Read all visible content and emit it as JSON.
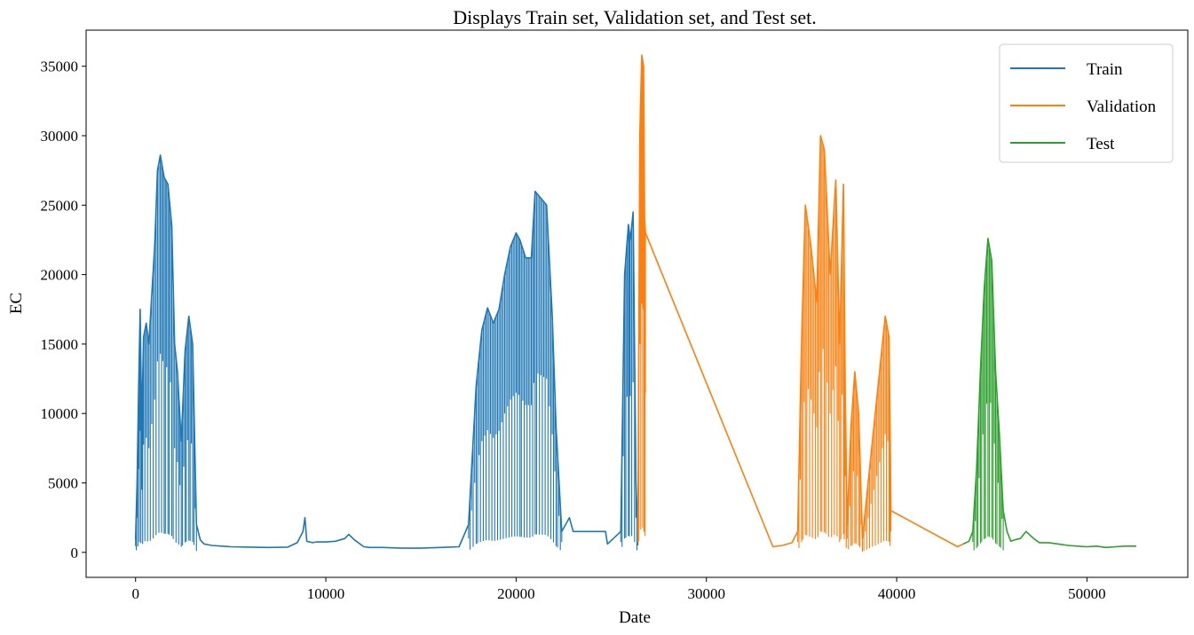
{
  "chart_data": {
    "type": "line",
    "title": "Displays Train set, Validation set, and Test set.",
    "xlabel": "Date",
    "ylabel": "EC",
    "xlim": [
      -2600,
      55300
    ],
    "ylim": [
      -1800,
      37600
    ],
    "xticks": [
      0,
      10000,
      20000,
      30000,
      40000,
      50000
    ],
    "yticks": [
      0,
      5000,
      10000,
      15000,
      20000,
      25000,
      30000,
      35000
    ],
    "grid": false,
    "legend_position": "top-right",
    "series": [
      {
        "name": "Train",
        "color": "#1f77b4",
        "x": [
          0,
          80,
          160,
          240,
          320,
          420,
          560,
          700,
          850,
          1000,
          1150,
          1300,
          1500,
          1700,
          1900,
          2050,
          2200,
          2400,
          2600,
          2800,
          3000,
          3200,
          3400,
          3600,
          4000,
          5000,
          6000,
          7000,
          8000,
          8500,
          8800,
          8900,
          9000,
          9300,
          9500,
          10000,
          10500,
          11000,
          11200,
          11500,
          11800,
          12000,
          12300,
          13000,
          14000,
          15000,
          16000,
          17000,
          17500,
          17900,
          18200,
          18500,
          18800,
          19100,
          19400,
          19700,
          20000,
          20200,
          20500,
          20800,
          21000,
          21300,
          21600,
          21900,
          22100,
          22400,
          22600,
          22800,
          23000,
          24000,
          24700,
          24800,
          25500,
          25700,
          25900,
          26000,
          26150,
          26300,
          26400
        ],
        "y": [
          900,
          5000,
          12000,
          17500,
          9000,
          15500,
          16500,
          15000,
          18500,
          22000,
          27500,
          28600,
          27000,
          26500,
          23500,
          15000,
          13000,
          8000,
          14500,
          17000,
          15000,
          2000,
          900,
          600,
          500,
          400,
          380,
          350,
          380,
          700,
          1500,
          2500,
          800,
          700,
          750,
          750,
          800,
          1000,
          1300,
          900,
          600,
          400,
          350,
          350,
          300,
          300,
          350,
          400,
          2000,
          12000,
          16000,
          17600,
          16500,
          17500,
          20000,
          22000,
          23000,
          22500,
          21200,
          21200,
          26000,
          25500,
          25000,
          17000,
          9000,
          1500,
          2000,
          2500,
          1500,
          1500,
          1500,
          600,
          1500,
          20000,
          23600,
          22500,
          24500,
          5000,
          1000
        ]
      },
      {
        "name": "Validation",
        "color": "#ff7f0e",
        "x": [
          26400,
          26500,
          26600,
          26700,
          26750,
          26800,
          33500,
          34000,
          34500,
          34800,
          35000,
          35200,
          35500,
          35800,
          36000,
          36200,
          36500,
          36800,
          37000,
          37200,
          37300,
          37400,
          37600,
          37800,
          38000,
          38200,
          39400,
          39600,
          39700,
          43200,
          43500
        ],
        "y": [
          1500,
          30000,
          35800,
          35000,
          24000,
          23000,
          400,
          500,
          700,
          1500,
          15000,
          25000,
          22000,
          18000,
          30000,
          29000,
          20000,
          26800,
          15000,
          26500,
          11000,
          2000,
          9000,
          13000,
          10000,
          1000,
          17000,
          15500,
          3000,
          400,
          600
        ]
      },
      {
        "name": "Test",
        "color": "#2ca02c",
        "x": [
          43500,
          43800,
          44000,
          44200,
          44400,
          44600,
          44800,
          45000,
          45200,
          45400,
          45600,
          45800,
          46000,
          46200,
          46500,
          46800,
          47200,
          47500,
          48000,
          48500,
          49000,
          49500,
          50000,
          50500,
          51000,
          51500,
          52000,
          52600
        ],
        "y": [
          600,
          800,
          1500,
          6000,
          13000,
          19000,
          22600,
          21000,
          13000,
          8500,
          3000,
          1500,
          800,
          900,
          1000,
          1500,
          1000,
          700,
          700,
          600,
          500,
          450,
          400,
          450,
          350,
          400,
          450,
          450
        ]
      }
    ]
  }
}
